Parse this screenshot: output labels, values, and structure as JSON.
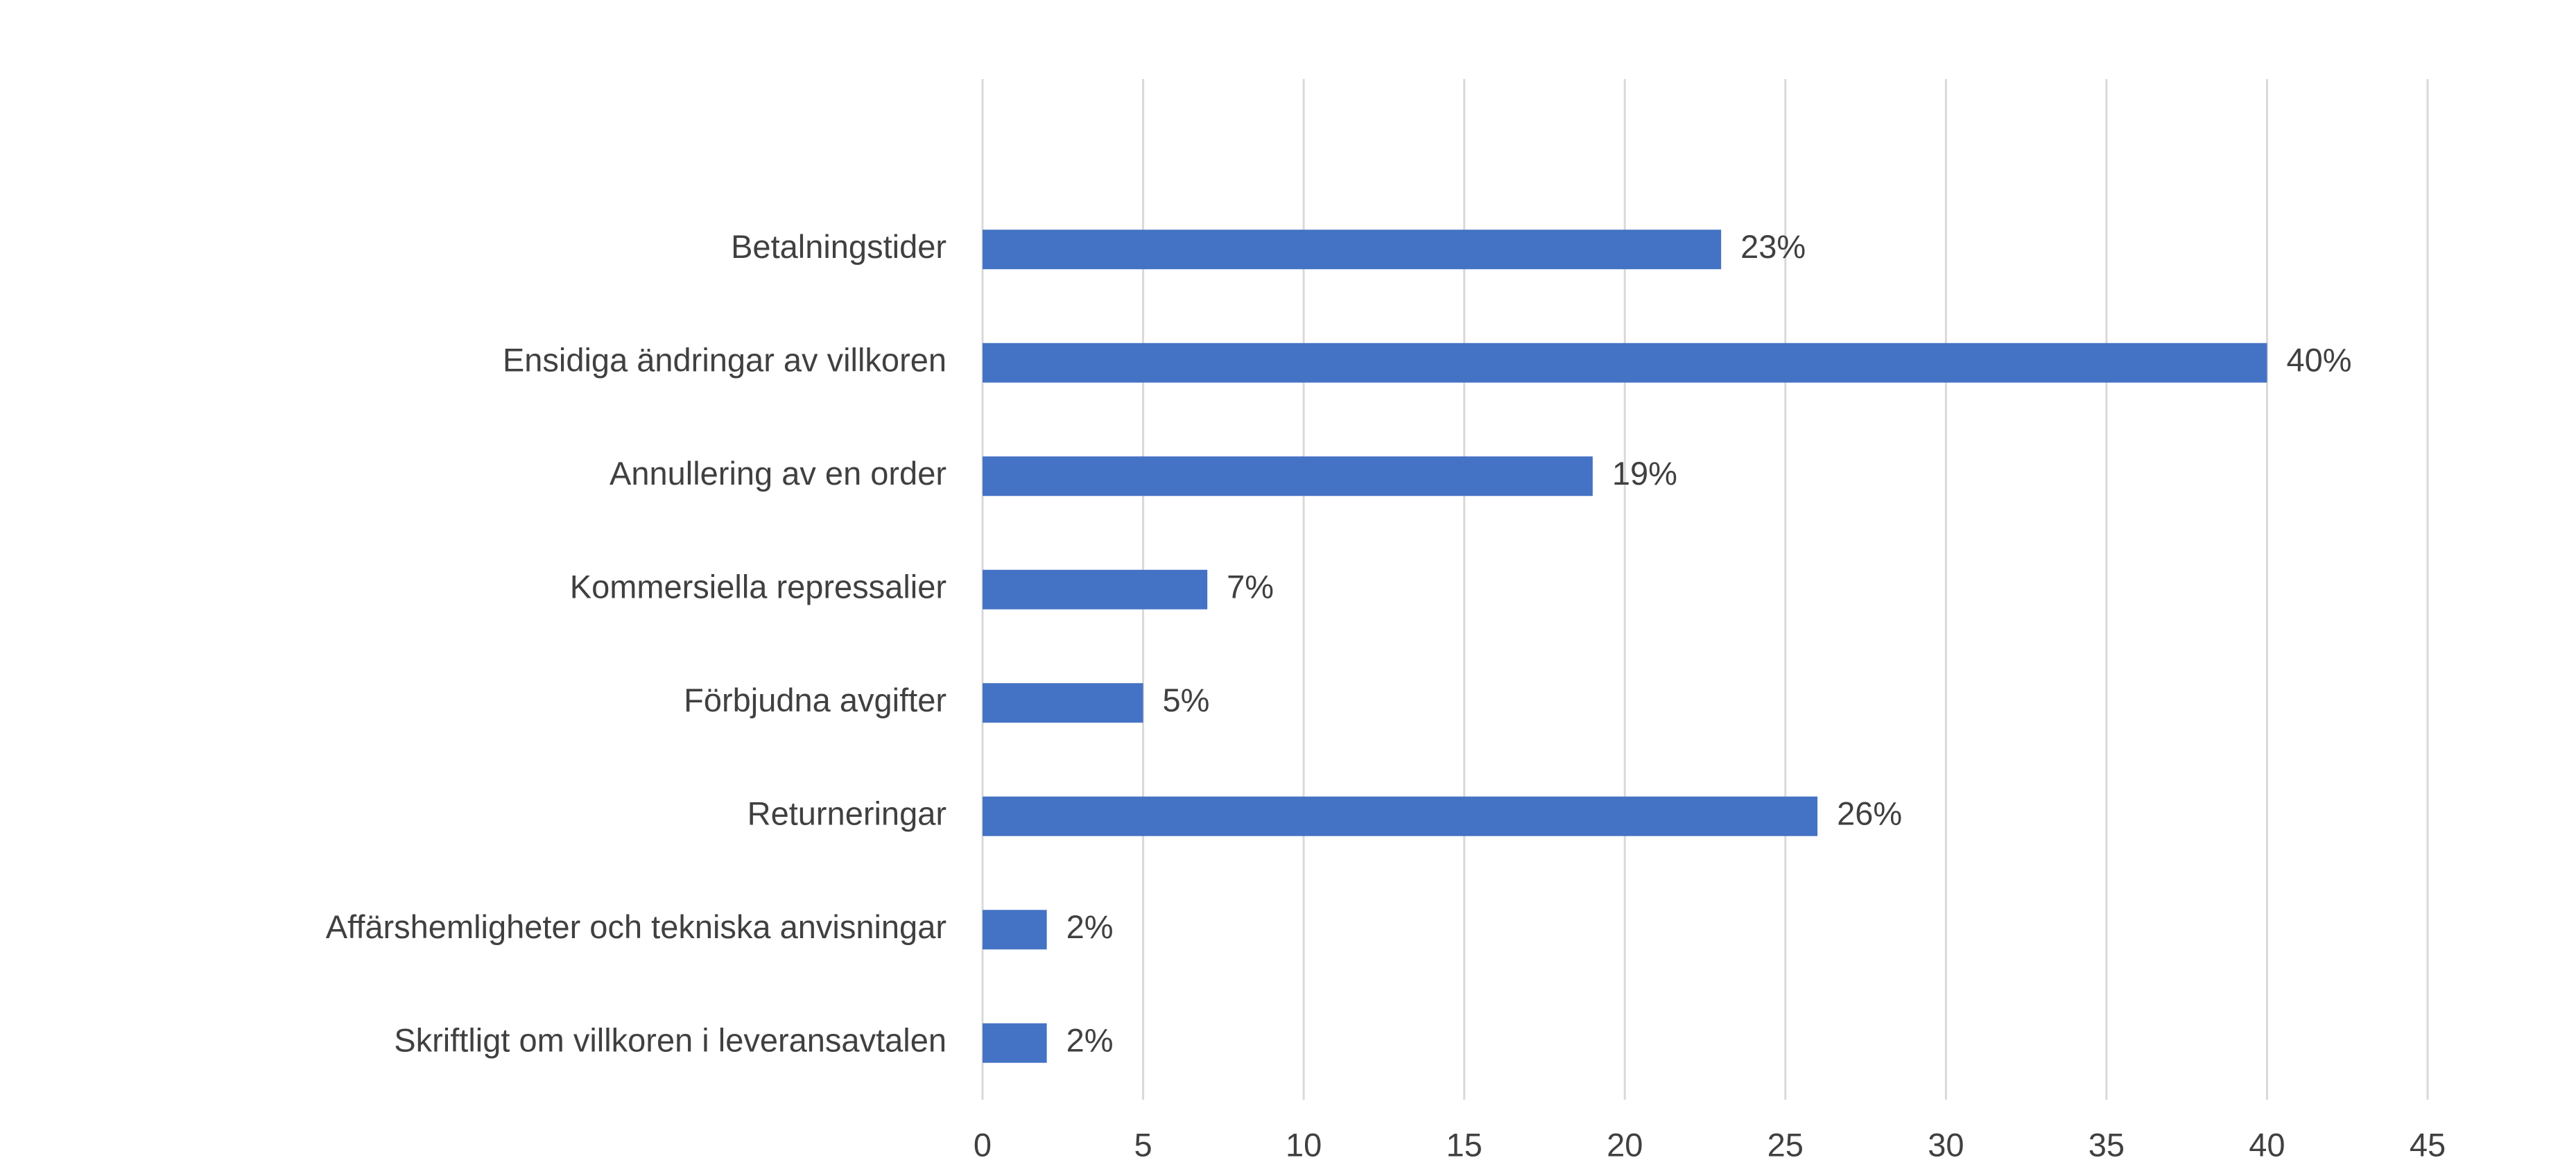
{
  "chart_data": {
    "type": "bar",
    "orientation": "horizontal",
    "categories": [
      "Betalningstider",
      "Ensidiga ändringar av villkoren",
      "Annullering av en order",
      "Kommersiella repressalier",
      "Förbjudna avgifter",
      "Returneringar",
      "Affärshemligheter och tekniska anvisningar",
      "Skriftligt om villkoren i leveransavtalen"
    ],
    "values": [
      23,
      40,
      19,
      7,
      5,
      26,
      2,
      2
    ],
    "value_labels": [
      "23%",
      "40%",
      "19%",
      "7%",
      "5%",
      "26%",
      "2%",
      "2%"
    ],
    "color": "#4472c4",
    "xlim": [
      0,
      45
    ],
    "xticks": [
      0,
      5,
      10,
      15,
      20,
      25,
      30,
      35,
      40,
      45
    ],
    "grid": true
  }
}
